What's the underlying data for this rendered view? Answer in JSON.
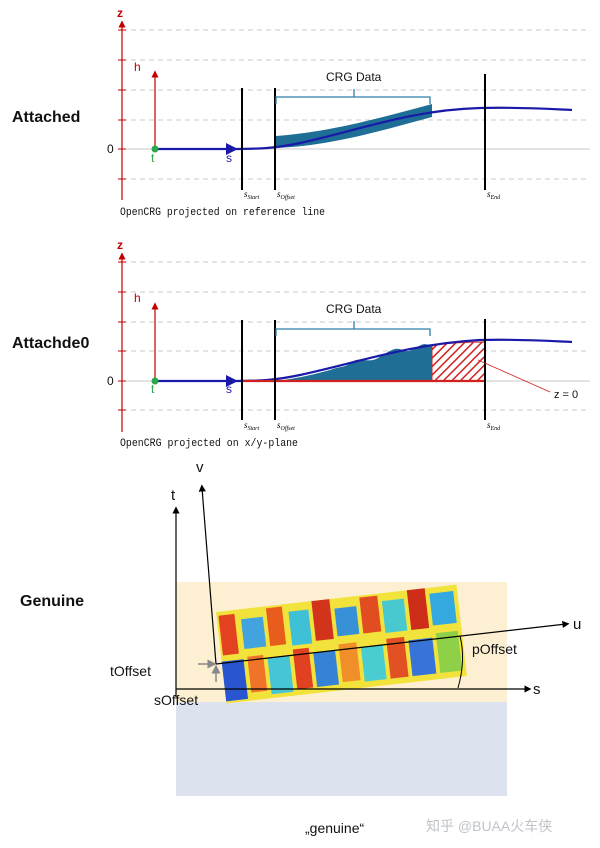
{
  "panel_attached": {
    "label": "Attached",
    "axis_z": "z",
    "axis_h": "h",
    "zero": "0",
    "t_label": "t",
    "s_label": "s",
    "crg_data": "CRG Data",
    "s_start": "s",
    "s_start_sub": "Start",
    "s_offset": "s",
    "s_offset_sub": "Offset",
    "s_end": "s",
    "s_end_sub": "End",
    "caption": "OpenCRG projected on reference line"
  },
  "panel_attached0": {
    "label": "Attachde0",
    "axis_z": "z",
    "axis_h": "h",
    "zero": "0",
    "t_label": "t",
    "s_label": "s",
    "crg_data": "CRG Data",
    "z_eq_zero": "z = 0",
    "s_start": "s",
    "s_start_sub": "Start",
    "s_offset": "s",
    "s_offset_sub": "Offset",
    "s_end": "s",
    "s_end_sub": "End",
    "caption": "OpenCRG projected on x/y-plane"
  },
  "panel_genuine": {
    "label": "Genuine",
    "t_axis": "t",
    "v_axis": "v",
    "u_axis": "u",
    "s_axis": "s",
    "p_offset": "pOffset",
    "t_offset": "tOffset",
    "s_offset": "sOffset",
    "caption": "„genuine“"
  },
  "watermark": "知乎 @BUAA火车侠",
  "colors": {
    "axis_red": "#c00000",
    "road_blue": "#1a1aa8",
    "crg_fill": "#1f6e96",
    "bracket": "#2e7ea6",
    "green": "#2aa84a",
    "hatch": "#d02020",
    "plane_top": "#fdf0d2",
    "plane_bottom": "#dde3ee"
  }
}
